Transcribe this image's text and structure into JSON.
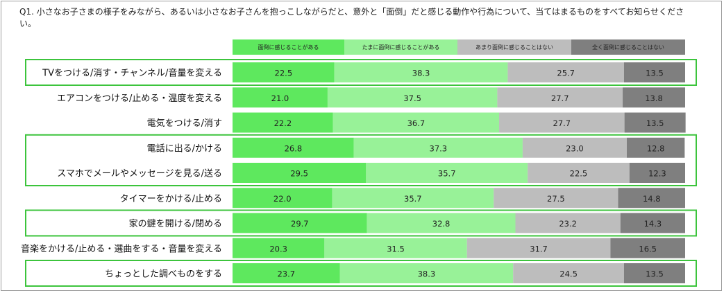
{
  "question": "Q1. 小さなお子さまの様子をみながら、あるいは小さなお子さんを抱っこしながらだと、意外と「面倒」だと感じる動作や行為について、当てはまるものをすべてお知らせください。",
  "colors": {
    "series": [
      "#5ee85e",
      "#98f298",
      "#bdbdbd",
      "#7f7f7f"
    ],
    "highlight_border": "#3cc43c"
  },
  "chart_data": {
    "type": "bar",
    "orientation": "horizontal",
    "stacked": true,
    "normalized": true,
    "xlim": [
      0,
      100
    ],
    "grid": false,
    "legend_position": "top",
    "categories": [
      "TVをつける/消す・チャンネル/音量を変える",
      "エアコンをつける/止める・温度を変える",
      "電気をつける/消す",
      "電話に出る/かける",
      "スマホでメールやメッセージを見る/送る",
      "タイマーをかける/止める",
      "家の鍵を開ける/閉める",
      "音楽をかける/止める・選曲をする・音量を変える",
      "ちょっとした調べものをする"
    ],
    "series": [
      {
        "name": "面倒に感じることがある",
        "values": [
          22.5,
          21.0,
          22.2,
          26.8,
          29.5,
          22.0,
          29.7,
          20.3,
          23.7
        ]
      },
      {
        "name": "たまに面倒に感じることがある",
        "values": [
          38.3,
          37.5,
          36.7,
          37.3,
          35.7,
          35.7,
          32.8,
          31.5,
          38.3
        ]
      },
      {
        "name": "あまり面倒に感じることはない",
        "values": [
          25.7,
          27.7,
          27.7,
          23.0,
          22.5,
          27.5,
          23.2,
          31.7,
          24.5
        ]
      },
      {
        "name": "全く面倒に感じることはない",
        "values": [
          13.5,
          13.8,
          13.5,
          12.8,
          12.3,
          14.8,
          14.3,
          16.5,
          13.5
        ]
      }
    ],
    "highlight_groups": [
      [
        0
      ],
      [
        3,
        4
      ],
      [
        6
      ],
      [
        8
      ]
    ]
  }
}
